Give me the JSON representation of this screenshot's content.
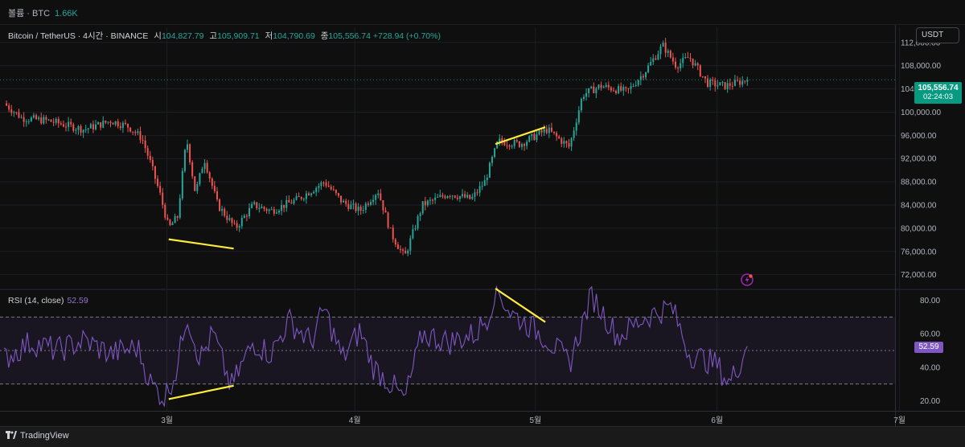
{
  "topbar": {
    "volume_label": "볼륨 · BTC",
    "volume_value": "1.66K"
  },
  "legend": {
    "symbol": "Bitcoin / TetherUS · 4시간 · BINANCE",
    "open_label": "시",
    "open": "104,827.79",
    "high_label": "고",
    "high": "105,909.71",
    "low_label": "저",
    "low": "104,790.69",
    "close_label": "종",
    "close": "105,556.74",
    "change": "+728.94 (+0.70%)"
  },
  "currency": "USDT",
  "price_badge": {
    "price": "105,556.74",
    "countdown": "02:24:03"
  },
  "rsi": {
    "label": "RSI (14, close)",
    "value": "52.59"
  },
  "footer": {
    "brand": "TradingView"
  },
  "colors": {
    "up": "#26a69a",
    "down": "#ef5350",
    "rsi": "#7e57c2",
    "trendline": "#ffeb3b",
    "badge": "#089981"
  },
  "chart_data": [
    {
      "type": "candlestick",
      "title": "Bitcoin / TetherUS · 4시간 · BINANCE",
      "y_axis_ticks": [
        72000,
        76000,
        80000,
        84000,
        88000,
        92000,
        96000,
        100000,
        104000,
        108000,
        112000
      ],
      "y_tick_labels": [
        "72,000.00",
        "76,000.00",
        "80,000.00",
        "84,000.00",
        "88,000.00",
        "92,000.00",
        "96,000.00",
        "100,000.00",
        "104,000.00",
        "108,000.00",
        "112,000.00"
      ],
      "ylim": [
        69600,
        114600
      ],
      "x_tick_labels": [
        "3월",
        "4월",
        "5월",
        "6월",
        "7월"
      ],
      "current_price": 105556.74,
      "close_path": [
        {
          "t": 0,
          "p": 101500
        },
        {
          "t": 0.02,
          "p": 99000
        },
        {
          "t": 0.05,
          "p": 98500
        },
        {
          "t": 0.09,
          "p": 97000
        },
        {
          "t": 0.12,
          "p": 98500
        },
        {
          "t": 0.14,
          "p": 97500
        },
        {
          "t": 0.155,
          "p": 95500
        },
        {
          "t": 0.165,
          "p": 91000
        },
        {
          "t": 0.175,
          "p": 86000
        },
        {
          "t": 0.185,
          "p": 80000
        },
        {
          "t": 0.195,
          "p": 82000
        },
        {
          "t": 0.205,
          "p": 95500
        },
        {
          "t": 0.215,
          "p": 86000
        },
        {
          "t": 0.225,
          "p": 92000
        },
        {
          "t": 0.24,
          "p": 84000
        },
        {
          "t": 0.26,
          "p": 80000
        },
        {
          "t": 0.28,
          "p": 84000
        },
        {
          "t": 0.3,
          "p": 83000
        },
        {
          "t": 0.33,
          "p": 85000
        },
        {
          "t": 0.36,
          "p": 88000
        },
        {
          "t": 0.38,
          "p": 84500
        },
        {
          "t": 0.4,
          "p": 83000
        },
        {
          "t": 0.42,
          "p": 86500
        },
        {
          "t": 0.435,
          "p": 79000
        },
        {
          "t": 0.45,
          "p": 75000
        },
        {
          "t": 0.47,
          "p": 84000
        },
        {
          "t": 0.5,
          "p": 86000
        },
        {
          "t": 0.525,
          "p": 85000
        },
        {
          "t": 0.54,
          "p": 88000
        },
        {
          "t": 0.555,
          "p": 95000
        },
        {
          "t": 0.58,
          "p": 94500
        },
        {
          "t": 0.61,
          "p": 97000
        },
        {
          "t": 0.635,
          "p": 94000
        },
        {
          "t": 0.65,
          "p": 103000
        },
        {
          "t": 0.67,
          "p": 104500
        },
        {
          "t": 0.7,
          "p": 103500
        },
        {
          "t": 0.72,
          "p": 107000
        },
        {
          "t": 0.74,
          "p": 111500
        },
        {
          "t": 0.755,
          "p": 108000
        },
        {
          "t": 0.77,
          "p": 109500
        },
        {
          "t": 0.79,
          "p": 105000
        },
        {
          "t": 0.81,
          "p": 104500
        },
        {
          "t": 0.835,
          "p": 105556.74
        }
      ],
      "trendlines": [
        {
          "t1": 0.185,
          "p1": 78100,
          "t2": 0.258,
          "p2": 76500
        },
        {
          "t1": 0.552,
          "p1": 94500,
          "t2": 0.608,
          "p2": 97400
        }
      ]
    },
    {
      "type": "line",
      "title": "RSI (14, close)",
      "y_axis_ticks": [
        20,
        40,
        60,
        80
      ],
      "y_tick_labels": [
        "20.00",
        "40.00",
        "60.00",
        "80.00"
      ],
      "ylim": [
        14,
        86
      ],
      "bands": [
        30,
        50,
        70
      ],
      "current_value": 52.59,
      "values_path": [
        {
          "t": 0,
          "p": 45
        },
        {
          "t": 0.03,
          "p": 55
        },
        {
          "t": 0.06,
          "p": 50
        },
        {
          "t": 0.09,
          "p": 56
        },
        {
          "t": 0.12,
          "p": 48
        },
        {
          "t": 0.15,
          "p": 52
        },
        {
          "t": 0.165,
          "p": 30
        },
        {
          "t": 0.18,
          "p": 22
        },
        {
          "t": 0.195,
          "p": 40
        },
        {
          "t": 0.205,
          "p": 73
        },
        {
          "t": 0.22,
          "p": 45
        },
        {
          "t": 0.235,
          "p": 60
        },
        {
          "t": 0.255,
          "p": 28
        },
        {
          "t": 0.28,
          "p": 55
        },
        {
          "t": 0.3,
          "p": 48
        },
        {
          "t": 0.32,
          "p": 68
        },
        {
          "t": 0.345,
          "p": 55
        },
        {
          "t": 0.36,
          "p": 75
        },
        {
          "t": 0.38,
          "p": 45
        },
        {
          "t": 0.4,
          "p": 62
        },
        {
          "t": 0.415,
          "p": 40
        },
        {
          "t": 0.435,
          "p": 30
        },
        {
          "t": 0.45,
          "p": 20
        },
        {
          "t": 0.47,
          "p": 60
        },
        {
          "t": 0.5,
          "p": 55
        },
        {
          "t": 0.53,
          "p": 60
        },
        {
          "t": 0.545,
          "p": 72
        },
        {
          "t": 0.552,
          "p": 88
        },
        {
          "t": 0.57,
          "p": 72
        },
        {
          "t": 0.59,
          "p": 65
        },
        {
          "t": 0.61,
          "p": 57
        },
        {
          "t": 0.635,
          "p": 42
        },
        {
          "t": 0.66,
          "p": 83
        },
        {
          "t": 0.69,
          "p": 58
        },
        {
          "t": 0.72,
          "p": 70
        },
        {
          "t": 0.75,
          "p": 76
        },
        {
          "t": 0.77,
          "p": 48
        },
        {
          "t": 0.8,
          "p": 42
        },
        {
          "t": 0.815,
          "p": 30
        },
        {
          "t": 0.835,
          "p": 52.59
        }
      ],
      "trendlines": [
        {
          "t1": 0.185,
          "p1": 21,
          "t2": 0.258,
          "p2": 29
        },
        {
          "t1": 0.552,
          "p1": 87,
          "t2": 0.608,
          "p2": 67
        }
      ]
    }
  ]
}
